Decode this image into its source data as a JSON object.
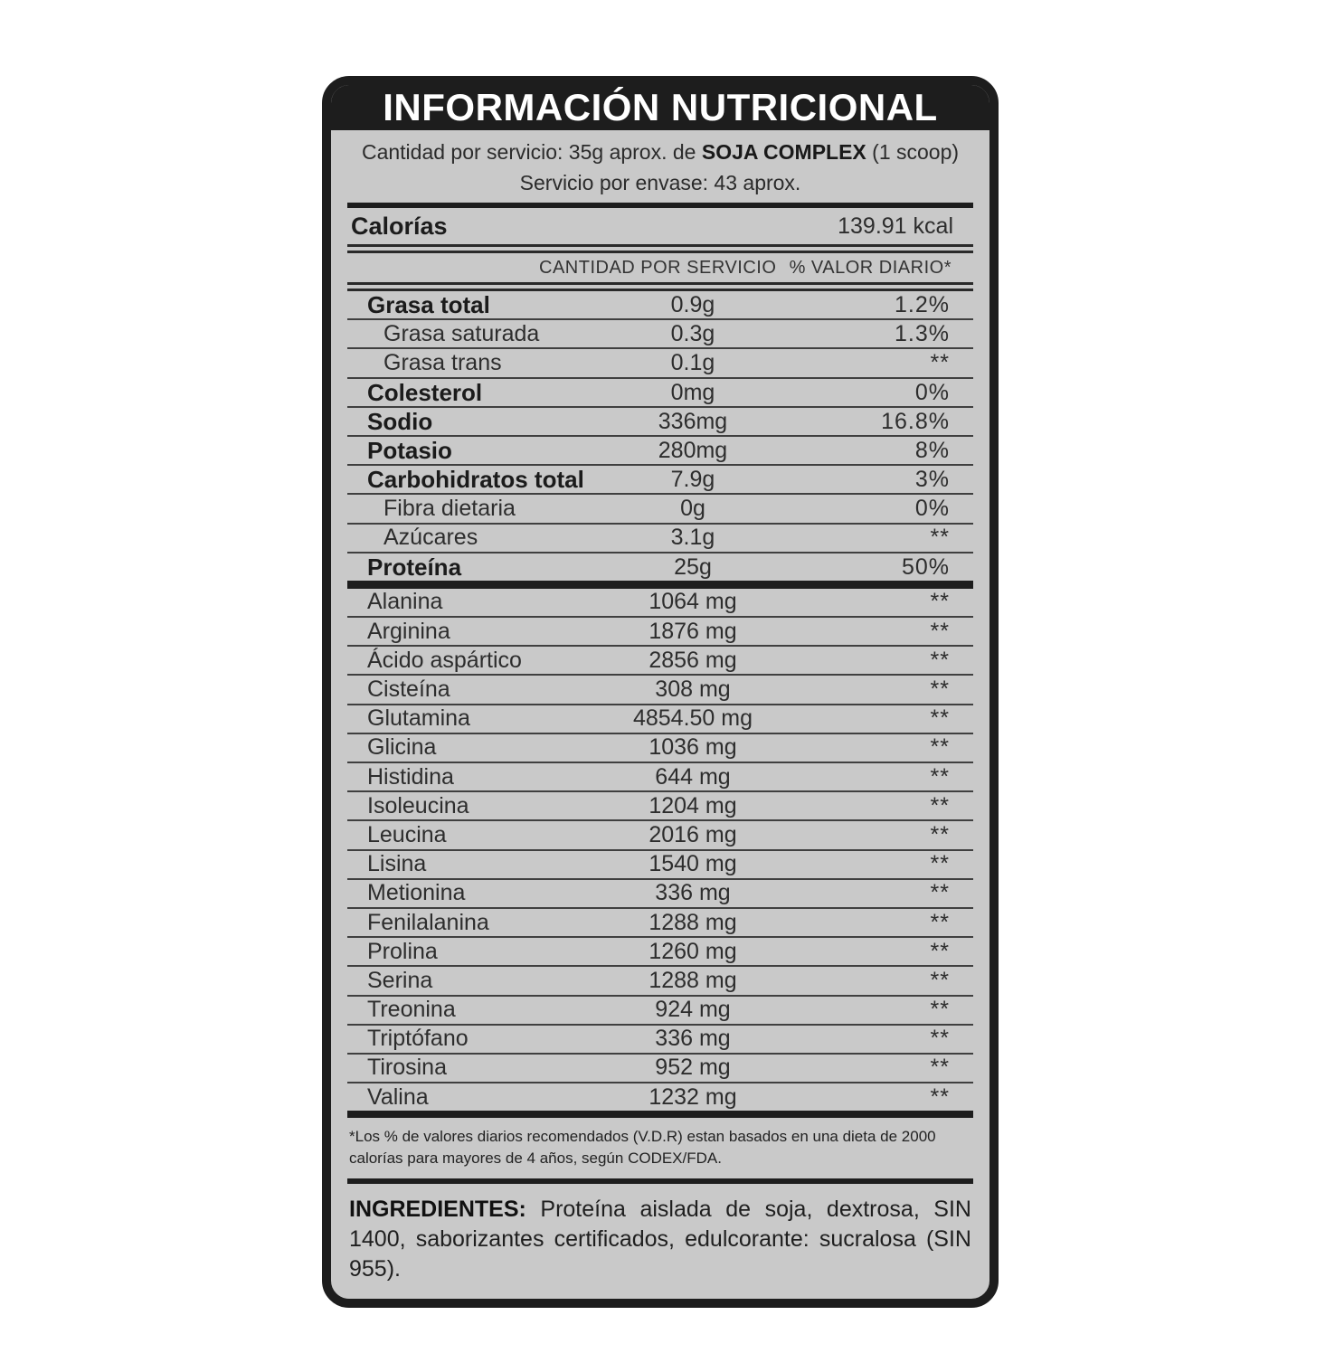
{
  "colors": {
    "label_background": "#c9c9c9",
    "band_black": "#1d1d1d",
    "separator_line": "#3f3f3f",
    "text": "#2d2d2d"
  },
  "label": {
    "title": "INFORMACIÓN NUTRICIONAL",
    "serving": {
      "prefix": "Cantidad por servicio: 35g aprox. de ",
      "product": "SOJA COMPLEX",
      "suffix": " (1 scoop)",
      "per_container": "Servicio por envase: 43 aprox."
    },
    "calories": {
      "name": "Calorías",
      "value": "139.91 kcal"
    },
    "columns": {
      "amount": "CANTIDAD POR SERVICIO",
      "dv": "% VALOR DIARIO*"
    },
    "nutrients": [
      {
        "name": "Grasa total",
        "amount": "0.9g",
        "dv": "1.2%",
        "bold": true
      },
      {
        "name": "Grasa saturada",
        "amount": "0.3g",
        "dv": "1.3%",
        "sub": true
      },
      {
        "name": "Grasa trans",
        "amount": "0.1g",
        "dv": "**",
        "sub": true
      },
      {
        "name": "Colesterol",
        "amount": "0mg",
        "dv": "0%",
        "bold": true
      },
      {
        "name": "Sodio",
        "amount": "336mg",
        "dv": "16.8%",
        "bold": true
      },
      {
        "name": "Potasio",
        "amount": "280mg",
        "dv": "8%",
        "bold": true
      },
      {
        "name": "Carbohidratos total",
        "amount": "7.9g",
        "dv": "3%",
        "bold": true
      },
      {
        "name": "Fibra dietaria",
        "amount": "0g",
        "dv": "0%",
        "sub": true
      },
      {
        "name": "Azúcares",
        "amount": "3.1g",
        "dv": "**",
        "sub": true
      },
      {
        "name": "Proteína",
        "amount": "25g",
        "dv": "50%",
        "bold": true
      }
    ],
    "amino_acids": [
      {
        "name": "Alanina",
        "amount": "1064 mg",
        "dv": "**"
      },
      {
        "name": "Arginina",
        "amount": "1876 mg",
        "dv": "**"
      },
      {
        "name": "Ácido aspártico",
        "amount": "2856 mg",
        "dv": "**"
      },
      {
        "name": "Cisteína",
        "amount": "308 mg",
        "dv": "**"
      },
      {
        "name": "Glutamina",
        "amount": "4854.50 mg",
        "dv": "**"
      },
      {
        "name": "Glicina",
        "amount": "1036 mg",
        "dv": "**"
      },
      {
        "name": "Histidina",
        "amount": "644 mg",
        "dv": "**"
      },
      {
        "name": "Isoleucina",
        "amount": "1204 mg",
        "dv": "**"
      },
      {
        "name": "Leucina",
        "amount": "2016 mg",
        "dv": "**"
      },
      {
        "name": "Lisina",
        "amount": "1540 mg",
        "dv": "**"
      },
      {
        "name": "Metionina",
        "amount": "336 mg",
        "dv": "**"
      },
      {
        "name": "Fenilalanina",
        "amount": "1288 mg",
        "dv": "**"
      },
      {
        "name": "Prolina",
        "amount": "1260 mg",
        "dv": "**"
      },
      {
        "name": "Serina",
        "amount": "1288 mg",
        "dv": "**"
      },
      {
        "name": "Treonina",
        "amount": "924 mg",
        "dv": "**"
      },
      {
        "name": "Triptófano",
        "amount": "336 mg",
        "dv": "**"
      },
      {
        "name": "Tirosina",
        "amount": "952 mg",
        "dv": "**"
      },
      {
        "name": "Valina",
        "amount": "1232 mg",
        "dv": "**"
      }
    ],
    "footnote": "*Los % de valores diarios recomendados (V.D.R) estan basados en una dieta de 2000 calorías para mayores de 4 años, según CODEX/FDA.",
    "ingredients_title": "INGREDIENTES:",
    "ingredients_text": "Proteína aislada de soja, dextrosa, SIN 1400, saborizantes certificados, edulcorante: sucralosa (SIN 955)."
  }
}
